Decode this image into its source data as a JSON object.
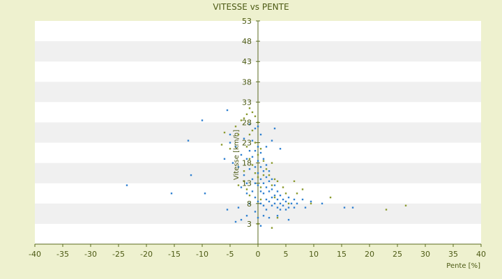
{
  "chart_data": {
    "type": "scatter",
    "title": "VITESSE vs PENTE",
    "xlabel": "Pente [%]",
    "ylabel": "Vitesse [km/h]",
    "xlim": [
      -40,
      40
    ],
    "ylim": [
      -2,
      53
    ],
    "x_ticks": [
      -40,
      -35,
      -30,
      -25,
      -20,
      -15,
      -10,
      -5,
      0,
      5,
      10,
      15,
      20,
      25,
      30,
      35,
      40
    ],
    "y_ticks": [
      3,
      8,
      13,
      18,
      23,
      28,
      33,
      38,
      43,
      48,
      53
    ],
    "grid": "horizontal bands",
    "colors": {
      "series_a": "#2e7fd0",
      "series_b": "#8a9a2e",
      "axis": "#5a6a1e",
      "band": "#f0f0f0",
      "plot_bg": "#ffffff"
    },
    "series": [
      {
        "color": "#2e7fd0",
        "points": [
          [
            -23.5,
            12.5
          ],
          [
            -15.5,
            10.5
          ],
          [
            -12.0,
            15.0
          ],
          [
            -12.5,
            23.5
          ],
          [
            -10.0,
            28.5
          ],
          [
            -9.5,
            10.5
          ],
          [
            -5.5,
            31.0
          ],
          [
            -5.0,
            25.0
          ],
          [
            -5.5,
            6.5
          ],
          [
            -4.0,
            3.5
          ],
          [
            -3.5,
            7.0
          ],
          [
            -3.0,
            4.0
          ],
          [
            -2.0,
            5.0
          ],
          [
            -6.0,
            19.0
          ],
          [
            -5.0,
            23.0
          ],
          [
            -4.5,
            18.0
          ],
          [
            -4.0,
            22.0
          ],
          [
            -3.5,
            17.0
          ],
          [
            -3.0,
            20.0
          ],
          [
            -3.0,
            12.0
          ],
          [
            -2.5,
            24.0
          ],
          [
            -2.5,
            15.0
          ],
          [
            -2.0,
            10.5
          ],
          [
            -2.0,
            19.0
          ],
          [
            -1.5,
            16.5
          ],
          [
            -1.5,
            21.0
          ],
          [
            -1.5,
            8.0
          ],
          [
            -1.0,
            14.0
          ],
          [
            -1.0,
            19.5
          ],
          [
            -1.0,
            23.5
          ],
          [
            -1.0,
            11.0
          ],
          [
            -0.5,
            21.0
          ],
          [
            -0.5,
            17.0
          ],
          [
            -0.5,
            13.0
          ],
          [
            -0.5,
            9.5
          ],
          [
            -0.5,
            6.0
          ],
          [
            0.0,
            22.0
          ],
          [
            0.0,
            18.5
          ],
          [
            0.0,
            15.5
          ],
          [
            0.0,
            12.5
          ],
          [
            0.0,
            8.5
          ],
          [
            0.0,
            4.5
          ],
          [
            0.0,
            27.0
          ],
          [
            0.5,
            20.5
          ],
          [
            0.5,
            17.0
          ],
          [
            0.5,
            14.0
          ],
          [
            0.5,
            11.0
          ],
          [
            0.5,
            8.0
          ],
          [
            0.5,
            25.0
          ],
          [
            1.0,
            19.0
          ],
          [
            1.0,
            16.0
          ],
          [
            1.0,
            13.0
          ],
          [
            1.0,
            10.5
          ],
          [
            1.0,
            7.5
          ],
          [
            1.0,
            5.0
          ],
          [
            1.5,
            17.5
          ],
          [
            1.5,
            14.5
          ],
          [
            1.5,
            12.0
          ],
          [
            1.5,
            9.0
          ],
          [
            1.5,
            6.5
          ],
          [
            2.0,
            16.0
          ],
          [
            2.0,
            13.5
          ],
          [
            2.0,
            11.0
          ],
          [
            2.0,
            8.5
          ],
          [
            2.0,
            4.5
          ],
          [
            2.5,
            14.0
          ],
          [
            2.5,
            11.5
          ],
          [
            2.5,
            9.5
          ],
          [
            2.5,
            7.5
          ],
          [
            2.5,
            23.5
          ],
          [
            3.0,
            12.5
          ],
          [
            3.0,
            10.0
          ],
          [
            3.0,
            8.0
          ],
          [
            3.0,
            26.5
          ],
          [
            3.5,
            11.0
          ],
          [
            3.5,
            9.0
          ],
          [
            3.5,
            7.0
          ],
          [
            3.5,
            5.0
          ],
          [
            4.0,
            10.0
          ],
          [
            4.0,
            8.0
          ],
          [
            4.0,
            6.5
          ],
          [
            4.5,
            9.0
          ],
          [
            4.5,
            7.5
          ],
          [
            5.0,
            8.5
          ],
          [
            5.0,
            6.5
          ],
          [
            5.5,
            9.5
          ],
          [
            5.5,
            7.0
          ],
          [
            5.5,
            4.0
          ],
          [
            6.0,
            8.0
          ],
          [
            6.5,
            7.0
          ],
          [
            6.5,
            9.0
          ],
          [
            7.0,
            8.0
          ],
          [
            8.0,
            9.0
          ],
          [
            8.5,
            7.0
          ],
          [
            9.5,
            8.5
          ],
          [
            11.5,
            8.0
          ],
          [
            15.5,
            7.0
          ],
          [
            17.0,
            7.0
          ],
          [
            4.0,
            21.5
          ],
          [
            -1.5,
            27.5
          ],
          [
            0.5,
            2.5
          ],
          [
            -2.0,
            13.0
          ],
          [
            1.5,
            22.0
          ],
          [
            -0.5,
            26.5
          ]
        ]
      },
      {
        "color": "#8a9a2e",
        "points": [
          [
            -6.0,
            25.5
          ],
          [
            -6.5,
            22.5
          ],
          [
            -5.0,
            21.5
          ],
          [
            -4.0,
            27.0
          ],
          [
            -3.5,
            25.0
          ],
          [
            -3.0,
            28.5
          ],
          [
            -2.5,
            29.0
          ],
          [
            -2.5,
            16.0
          ],
          [
            -2.0,
            30.0
          ],
          [
            -2.0,
            22.0
          ],
          [
            -2.0,
            11.5
          ],
          [
            -1.5,
            31.5
          ],
          [
            -1.5,
            25.0
          ],
          [
            -1.5,
            19.0
          ],
          [
            -1.5,
            10.0
          ],
          [
            -1.0,
            30.5
          ],
          [
            -1.0,
            26.0
          ],
          [
            -1.0,
            17.5
          ],
          [
            -0.5,
            29.5
          ],
          [
            -0.5,
            23.0
          ],
          [
            -0.5,
            15.5
          ],
          [
            0.0,
            28.0
          ],
          [
            0.0,
            20.0
          ],
          [
            0.0,
            14.5
          ],
          [
            0.0,
            3.0
          ],
          [
            0.5,
            21.5
          ],
          [
            0.5,
            12.0
          ],
          [
            0.5,
            9.0
          ],
          [
            1.0,
            18.5
          ],
          [
            1.0,
            15.0
          ],
          [
            1.5,
            16.5
          ],
          [
            2.0,
            15.0
          ],
          [
            2.5,
            18.0
          ],
          [
            2.5,
            12.5
          ],
          [
            3.0,
            14.0
          ],
          [
            3.0,
            9.5
          ],
          [
            3.5,
            13.5
          ],
          [
            3.5,
            4.5
          ],
          [
            2.5,
            2.0
          ],
          [
            4.5,
            12.0
          ],
          [
            5.0,
            10.5
          ],
          [
            5.5,
            8.0
          ],
          [
            6.5,
            13.5
          ],
          [
            7.0,
            10.5
          ],
          [
            8.0,
            11.5
          ],
          [
            9.5,
            8.0
          ],
          [
            13.0,
            9.5
          ],
          [
            23.0,
            6.5
          ],
          [
            26.5,
            7.5
          ],
          [
            -3.5,
            12.5
          ],
          [
            -2.5,
            13.5
          ]
        ]
      }
    ]
  }
}
